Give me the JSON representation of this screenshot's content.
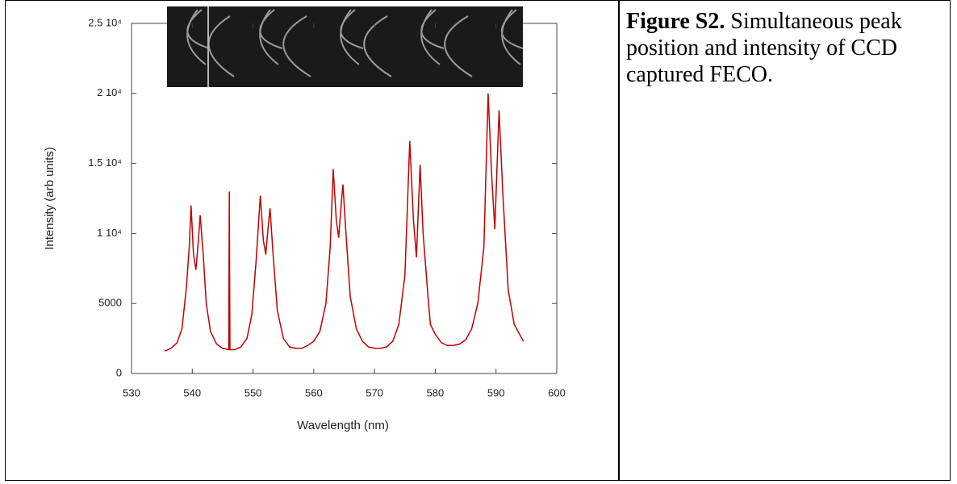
{
  "chart_data": {
    "type": "line",
    "xlabel": "Wavelength (nm)",
    "ylabel": "Intensity (arb units)",
    "color": "#c00000",
    "x": [
      535.5,
      536.5,
      537.5,
      538.3,
      539,
      539.5,
      539.8,
      540.2,
      540.6,
      541,
      541.3,
      541.8,
      542.3,
      543,
      544,
      545,
      546,
      546.1,
      546.2,
      547,
      548,
      549,
      549.8,
      550.5,
      551.2,
      551.7,
      552.1,
      552.5,
      552.8,
      553.3,
      554,
      555,
      556,
      557,
      558,
      559,
      560,
      561,
      562,
      562.7,
      563.2,
      563.7,
      564.1,
      564.5,
      564.8,
      565.3,
      566,
      567,
      568,
      569,
      570,
      571,
      572,
      573,
      574,
      575,
      575.8,
      576.4,
      576.9,
      577.5,
      578,
      578.8,
      579.2,
      580,
      581,
      582,
      583,
      584,
      585,
      586,
      587,
      588,
      588.7,
      589.3,
      589.8,
      590.5,
      591.1,
      592,
      593,
      594.5
    ],
    "values": [
      1600,
      1800,
      2200,
      3200,
      6000,
      9000,
      12000,
      8500,
      7400,
      9500,
      11300,
      8500,
      5000,
      3000,
      2100,
      1800,
      1700,
      13000,
      1700,
      1700,
      1900,
      2500,
      4200,
      8000,
      12700,
      9500,
      8500,
      10500,
      11800,
      8500,
      4500,
      2500,
      1900,
      1800,
      1800,
      2000,
      2300,
      3000,
      5000,
      9000,
      14600,
      11000,
      9700,
      12000,
      13500,
      10000,
      5500,
      3200,
      2300,
      1900,
      1800,
      1800,
      1900,
      2300,
      3500,
      7000,
      16600,
      11000,
      8300,
      14900,
      10000,
      5500,
      3500,
      2800,
      2200,
      2000,
      2000,
      2100,
      2400,
      3200,
      5000,
      9000,
      20000,
      14000,
      10300,
      18800,
      13000,
      6000,
      3500,
      2300
    ],
    "xlim": [
      530,
      600
    ],
    "xticks": [
      530,
      540,
      550,
      560,
      570,
      580,
      590,
      600
    ],
    "ylim": [
      0,
      25000
    ],
    "yticks": [
      0,
      5000,
      {
        "value": 10000,
        "label": "1 10⁴"
      },
      {
        "value": 15000,
        "label": "1.5 10⁴"
      },
      {
        "value": 20000,
        "label": "2 10⁴"
      },
      {
        "value": 25000,
        "label": "2.5 10⁴"
      }
    ],
    "grid": false
  },
  "caption": {
    "label": "Figure S2.",
    "text": "Simultaneous peak position and intensity of CCD captured FECO."
  }
}
